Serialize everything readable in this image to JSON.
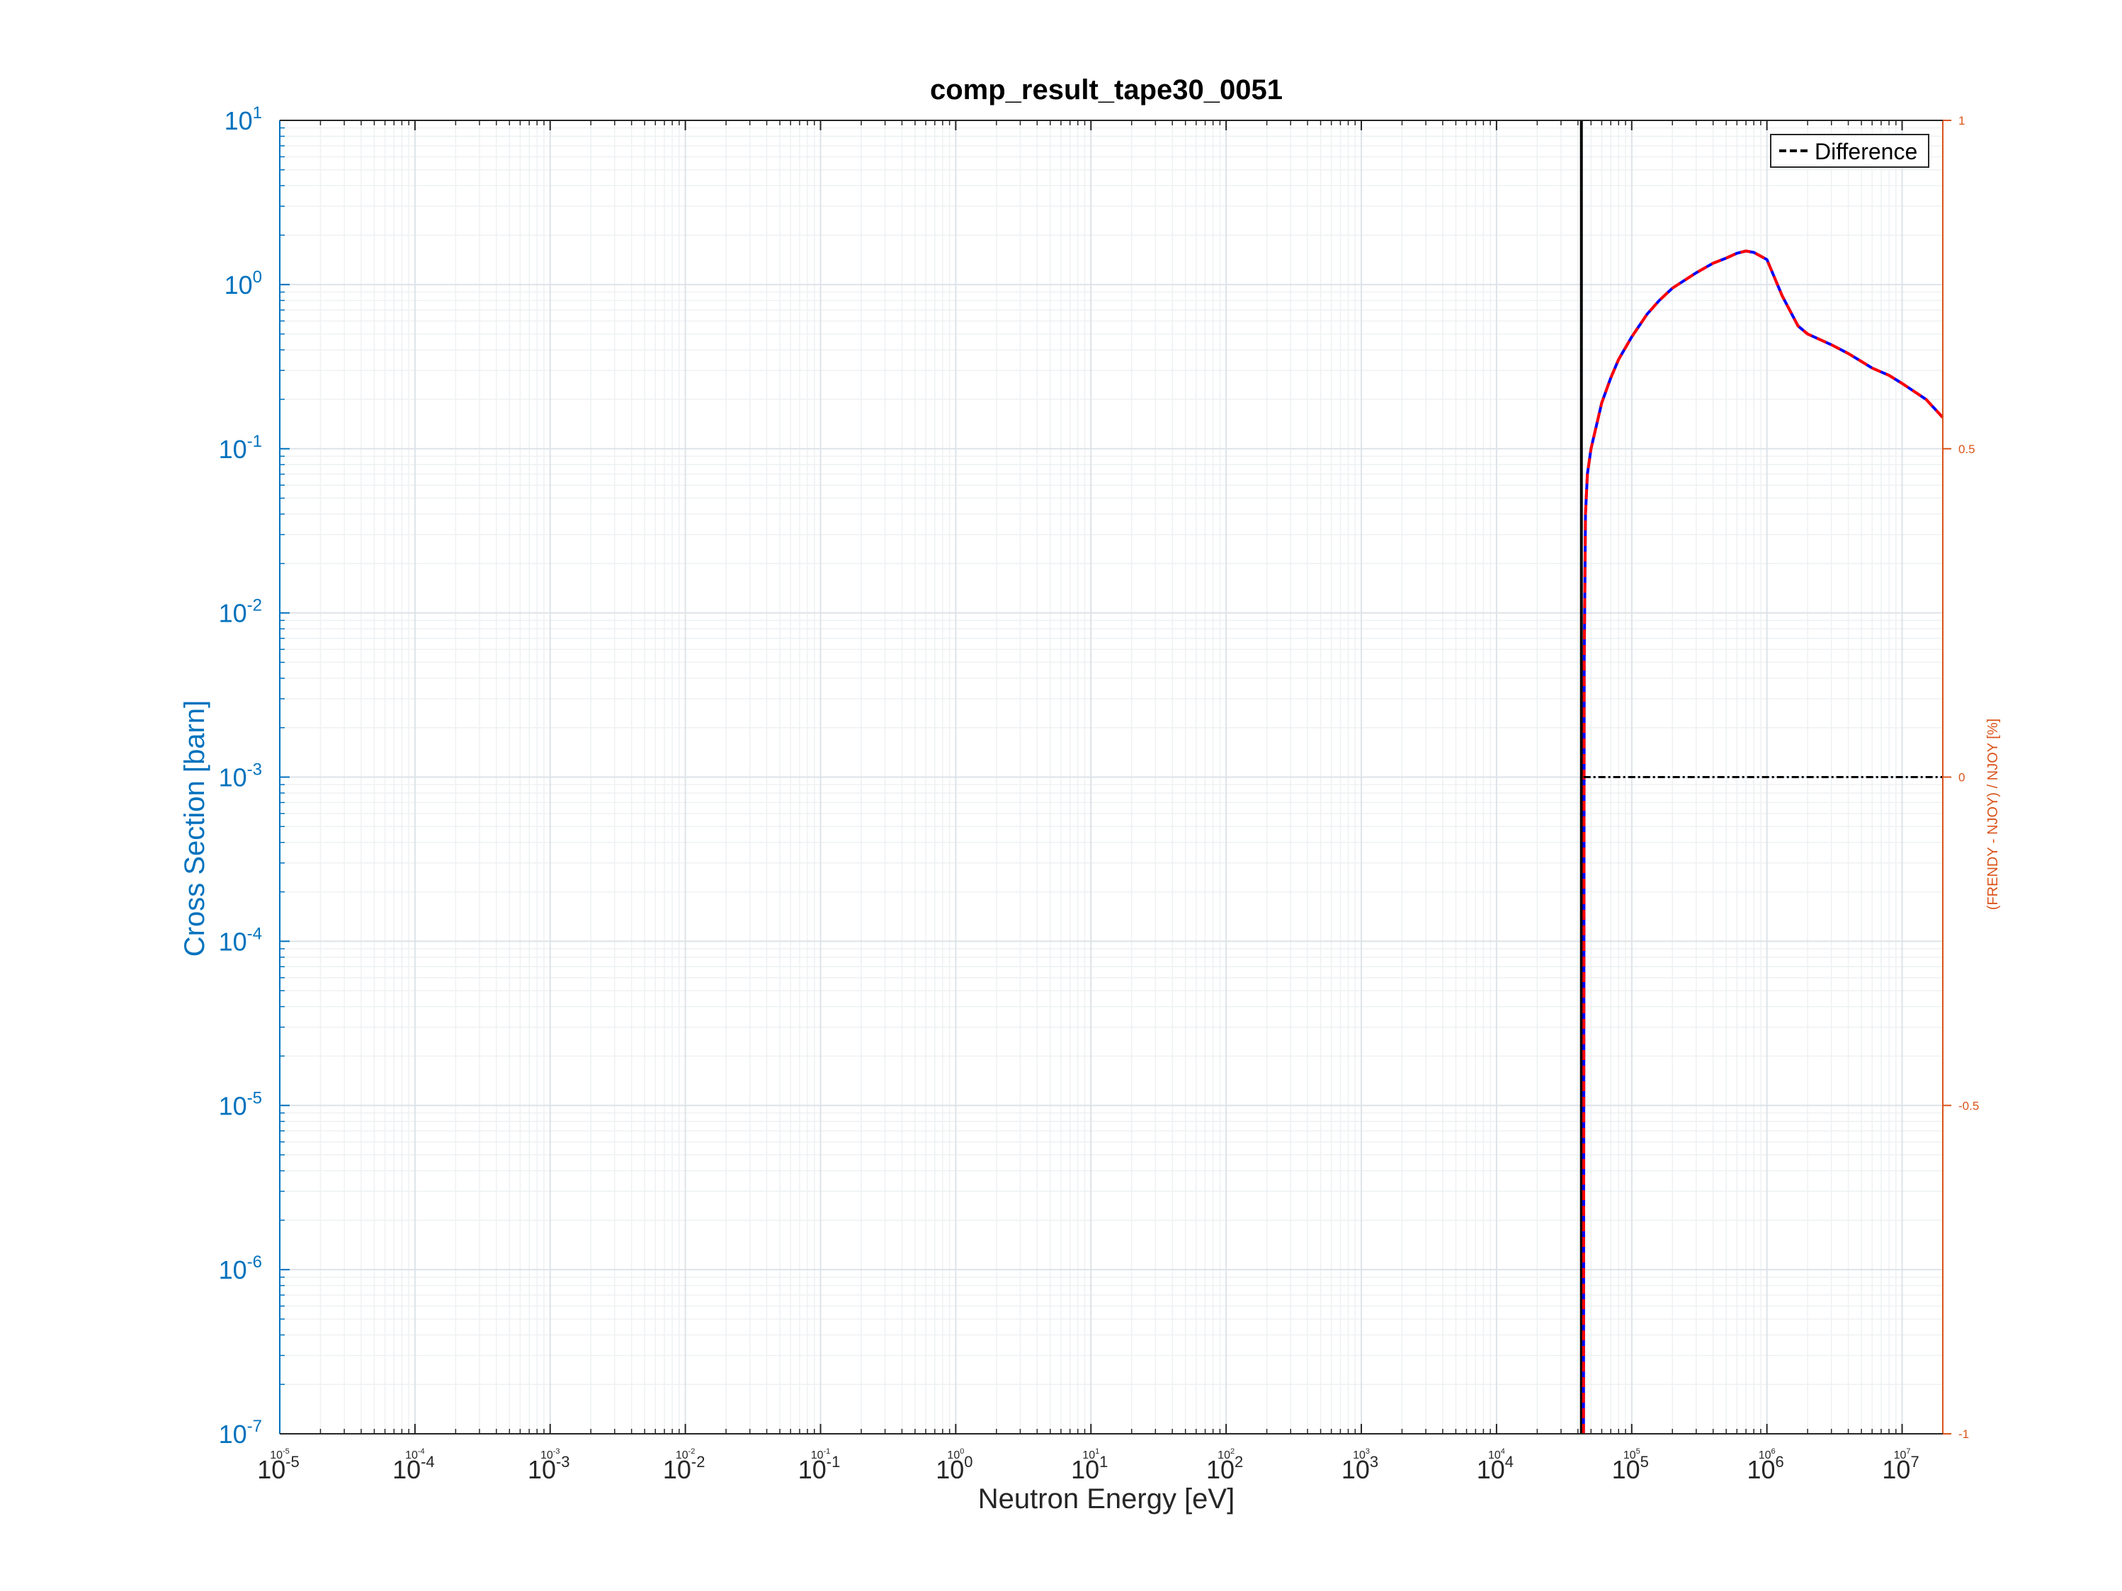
{
  "chart_data": {
    "type": "line",
    "title": "comp_result_tape30_0051",
    "xlabel": "Neutron Energy [eV]",
    "ylabel": "Cross Section [barn]",
    "y2label": "(FRENDY - NJOY) / NJOY [%]",
    "xscale": "log",
    "yscale": "log",
    "xlim": [
      1e-05,
      20000000.0
    ],
    "ylim": [
      1e-07,
      10
    ],
    "y2lim": [
      -1,
      1
    ],
    "x_tick_exponents": [
      -5,
      -4,
      -3,
      -2,
      -1,
      0,
      1,
      2,
      3,
      4,
      5,
      6,
      7
    ],
    "y_tick_exponents": [
      1,
      0,
      -1,
      -2,
      -3,
      -4,
      -5,
      -6,
      -7
    ],
    "y2_ticks": [
      "1",
      "0.5",
      "0",
      "-0.5",
      "-1"
    ],
    "y2_tick_values": [
      1,
      0.5,
      0,
      -0.5,
      -1
    ],
    "grid": true,
    "legend": {
      "position": "top-right",
      "entries": [
        "Difference"
      ]
    },
    "threshold_energy": 44000,
    "series": [
      {
        "line_color": "#0000ff",
        "dash": "solid",
        "axis": "left",
        "x": [
          44000,
          44500,
          45500,
          47000,
          50000,
          55000,
          60000,
          70000,
          80000,
          100000,
          130000,
          160000,
          200000,
          300000,
          400000,
          500000,
          600000,
          700000,
          800000,
          1000000,
          1300000,
          1700000,
          2000000,
          2500000,
          3000000,
          4000000,
          5000000,
          6000000,
          8000000,
          10000000,
          15000000,
          20000000
        ],
        "values": [
          1e-07,
          0.005,
          0.04,
          0.07,
          0.1,
          0.14,
          0.19,
          0.27,
          0.35,
          0.48,
          0.66,
          0.8,
          0.95,
          1.18,
          1.35,
          1.45,
          1.55,
          1.6,
          1.57,
          1.42,
          0.85,
          0.56,
          0.5,
          0.46,
          0.43,
          0.38,
          0.34,
          0.31,
          0.28,
          0.25,
          0.2,
          0.155
        ]
      },
      {
        "line_color": "#ff0000",
        "dash": "dashed",
        "axis": "left",
        "x": [
          44000,
          44500,
          45500,
          47000,
          50000,
          55000,
          60000,
          70000,
          80000,
          100000,
          130000,
          160000,
          200000,
          300000,
          400000,
          500000,
          600000,
          700000,
          800000,
          1000000,
          1300000,
          1700000,
          2000000,
          2500000,
          3000000,
          4000000,
          5000000,
          6000000,
          8000000,
          10000000,
          15000000,
          20000000
        ],
        "values": [
          1e-07,
          0.005,
          0.04,
          0.07,
          0.1,
          0.14,
          0.19,
          0.27,
          0.35,
          0.48,
          0.66,
          0.8,
          0.95,
          1.18,
          1.35,
          1.45,
          1.55,
          1.6,
          1.57,
          1.42,
          0.85,
          0.56,
          0.5,
          0.46,
          0.43,
          0.38,
          0.34,
          0.31,
          0.28,
          0.25,
          0.2,
          0.155
        ]
      },
      {
        "name": "Difference",
        "line_color": "#000000",
        "dash": "dashed",
        "axis": "right",
        "x": [
          44000,
          20000000
        ],
        "values": [
          0,
          0
        ]
      }
    ]
  }
}
